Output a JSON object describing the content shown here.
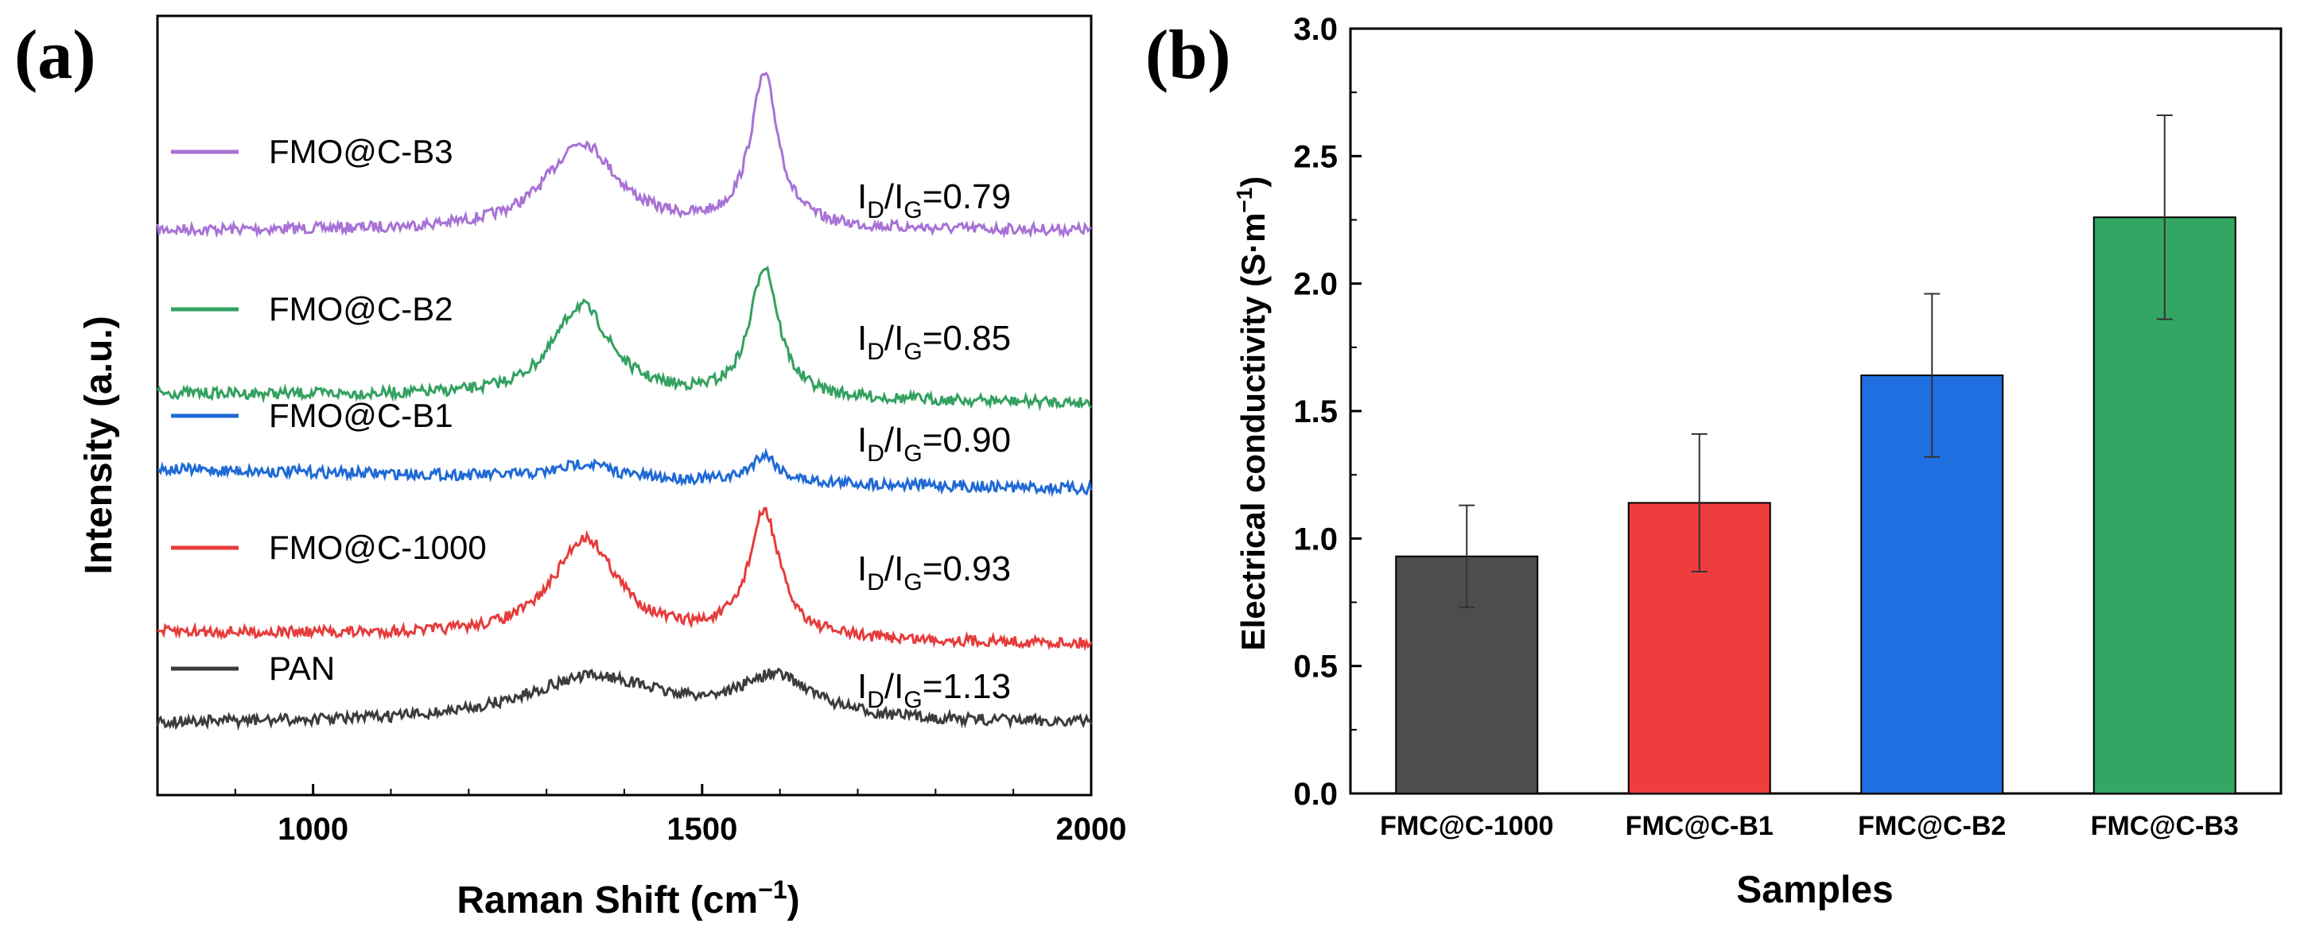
{
  "chart_data": [
    {
      "panel_label": "(a)",
      "type": "line",
      "xlabel": "Raman Shift (cm",
      "xlabel_sup": "−1",
      "xlabel_close": ")",
      "ylabel": "Intensity (a.u.)",
      "xlim": [
        800,
        2000
      ],
      "xticks": [
        "1000",
        "1500",
        "2000"
      ],
      "series": [
        {
          "name": "FMO@C-B3",
          "color": "#a872d6",
          "ratio_text": "0.79",
          "peaks": [
            {
              "x": 1345,
              "h": 0.55,
              "w": 55
            },
            {
              "x": 1580,
              "h": 0.95,
              "w": 22
            }
          ]
        },
        {
          "name": "FMO@C-B2",
          "color": "#33a160",
          "ratio_text": "0.85",
          "peaks": [
            {
              "x": 1345,
              "h": 0.7,
              "w": 45
            },
            {
              "x": 1580,
              "h": 1.0,
              "w": 22
            }
          ]
        },
        {
          "name": "FMO@C-B1",
          "color": "#1f6ad6",
          "ratio_text": "0.90",
          "peaks": [
            {
              "x": 1350,
              "h": 0.3,
              "w": 40
            },
            {
              "x": 1580,
              "h": 0.55,
              "w": 20
            }
          ]
        },
        {
          "name": "FMO@C-1000",
          "color": "#e63c3c",
          "ratio_text": "0.93",
          "peaks": [
            {
              "x": 1350,
              "h": 0.75,
              "w": 50
            },
            {
              "x": 1580,
              "h": 0.95,
              "w": 24
            }
          ]
        },
        {
          "name": "PAN",
          "color": "#3c3c3c",
          "ratio_text": "1.13",
          "peaks": [
            {
              "x": 1360,
              "h": 0.6,
              "w": 110
            },
            {
              "x": 1595,
              "h": 0.55,
              "w": 60
            }
          ]
        }
      ],
      "ratio_label": {
        "I": "I",
        "D": "D",
        "slash": "/",
        "G": "G",
        "eq": "="
      }
    },
    {
      "panel_label": "(b)",
      "type": "bar",
      "xlabel": "Samples",
      "ylabel": "Electrical conductivity (S·m",
      "ylabel_sup": "−1",
      "ylabel_close": ")",
      "ylim": [
        0,
        3.0
      ],
      "yticks": [
        "0.0",
        "0.5",
        "1.0",
        "1.5",
        "2.0",
        "2.5",
        "3.0"
      ],
      "categories": [
        "FMC@C-1000",
        "FMC@C-B1",
        "FMC@C-B2",
        "FMC@C-B3"
      ],
      "values": [
        0.93,
        1.14,
        1.64,
        2.26
      ],
      "errors": [
        0.2,
        0.27,
        0.32,
        0.4
      ],
      "colors": [
        "#4d4d4d",
        "#ee3d3d",
        "#1f6fe0",
        "#33a663"
      ]
    }
  ]
}
